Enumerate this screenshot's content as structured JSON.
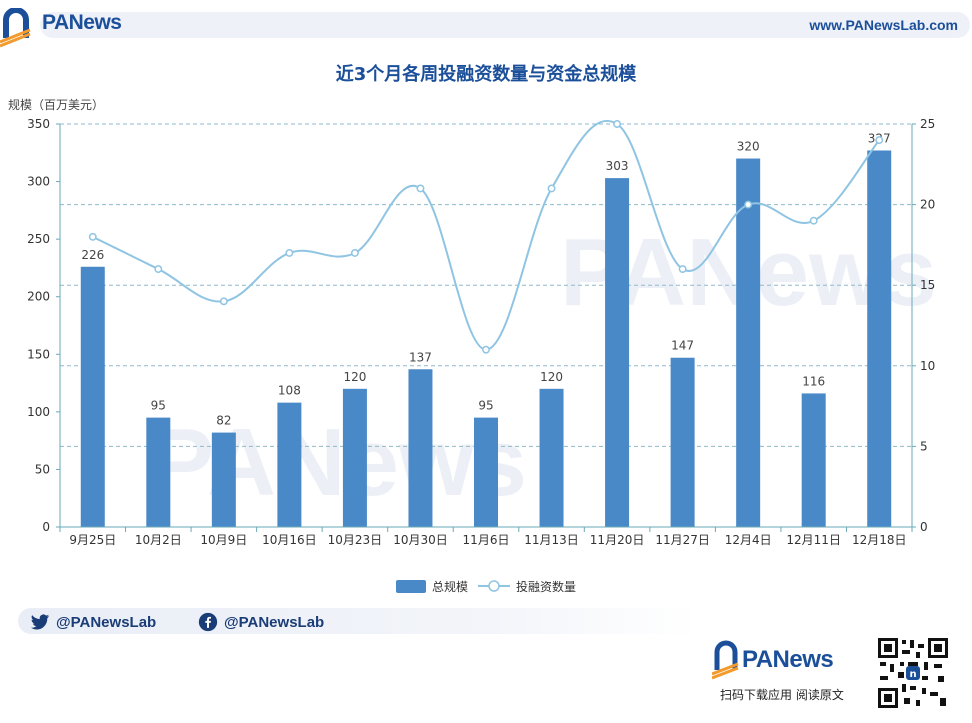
{
  "header": {
    "brand": "PANews",
    "url": "www.PANewsLab.com"
  },
  "chart_data": {
    "type": "bar",
    "title": "近3个月各周投融资数量与资金总规模",
    "ylabel": "规模（百万美元）",
    "categories": [
      "9月25日",
      "10月2日",
      "10月9日",
      "10月16日",
      "10月23日",
      "10月30日",
      "11月6日",
      "11月13日",
      "11月20日",
      "11月27日",
      "12月4日",
      "12月11日",
      "12月18日"
    ],
    "series": [
      {
        "name": "总规模",
        "type": "bar",
        "axis": "left",
        "values": [
          226,
          95,
          82,
          108,
          120,
          137,
          95,
          120,
          303,
          147,
          320,
          116,
          327
        ],
        "color": "#4a89c8"
      },
      {
        "name": "投融资数量",
        "type": "line",
        "axis": "right",
        "values": [
          18,
          16,
          14,
          17,
          17,
          21,
          11,
          21,
          25,
          16,
          20,
          19,
          24
        ],
        "color": "#8fc4e2"
      }
    ],
    "ylim_left": [
      0,
      350
    ],
    "yticks_left": [
      0,
      50,
      100,
      150,
      200,
      250,
      300,
      350
    ],
    "ylim_right": [
      0,
      25
    ],
    "yticks_right": [
      0,
      5,
      10,
      15,
      20,
      25
    ],
    "grid": true,
    "legend_position": "bottom"
  },
  "footer": {
    "twitter": "@PANewsLab",
    "facebook": "@PANewsLab",
    "brand": "PANews",
    "scan_text": "扫码下载应用  阅读原文"
  },
  "colors": {
    "brand_blue": "#1b4f9a",
    "bar": "#4a89c8",
    "line": "#8fc4e2"
  }
}
